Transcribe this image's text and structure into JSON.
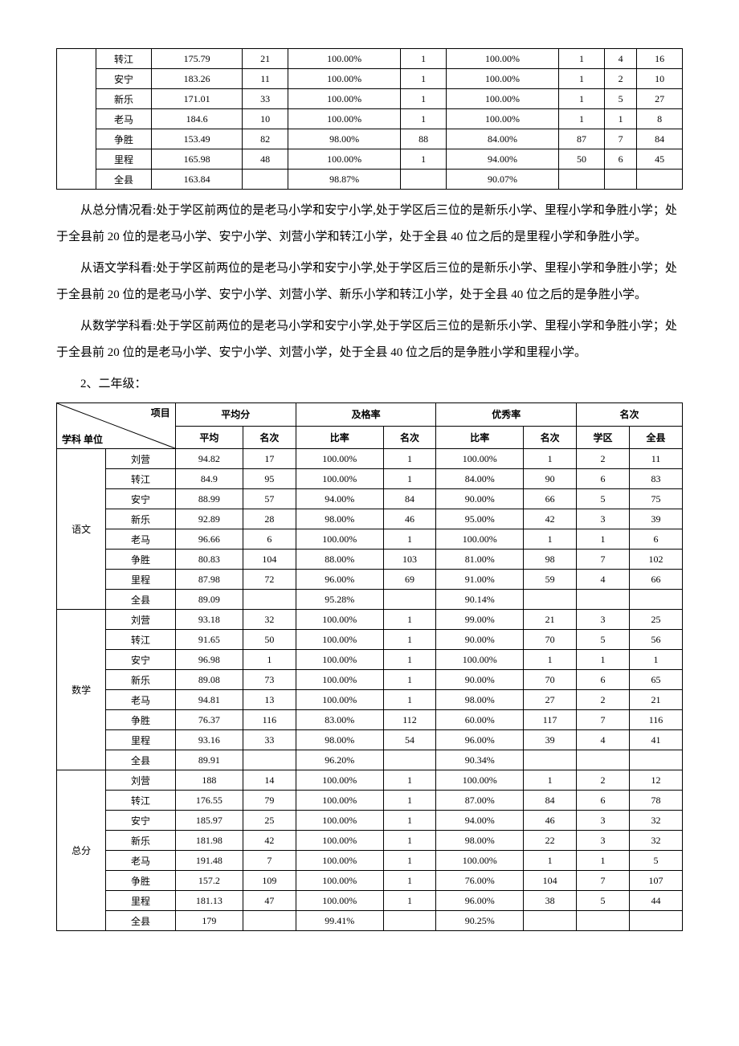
{
  "table1": {
    "rows": [
      {
        "school": "转江",
        "avg": "175.79",
        "avgRank": "21",
        "passRate": "100.00%",
        "passRank": "1",
        "excRate": "100.00%",
        "excRank": "1",
        "dist": "4",
        "county": "16"
      },
      {
        "school": "安宁",
        "avg": "183.26",
        "avgRank": "11",
        "passRate": "100.00%",
        "passRank": "1",
        "excRate": "100.00%",
        "excRank": "1",
        "dist": "2",
        "county": "10"
      },
      {
        "school": "新乐",
        "avg": "171.01",
        "avgRank": "33",
        "passRate": "100.00%",
        "passRank": "1",
        "excRate": "100.00%",
        "excRank": "1",
        "dist": "5",
        "county": "27"
      },
      {
        "school": "老马",
        "avg": "184.6",
        "avgRank": "10",
        "passRate": "100.00%",
        "passRank": "1",
        "excRate": "100.00%",
        "excRank": "1",
        "dist": "1",
        "county": "8"
      },
      {
        "school": "争胜",
        "avg": "153.49",
        "avgRank": "82",
        "passRate": "98.00%",
        "passRank": "88",
        "excRate": "84.00%",
        "excRank": "87",
        "dist": "7",
        "county": "84"
      },
      {
        "school": "里程",
        "avg": "165.98",
        "avgRank": "48",
        "passRate": "100.00%",
        "passRank": "1",
        "excRate": "94.00%",
        "excRank": "50",
        "dist": "6",
        "county": "45"
      },
      {
        "school": "全县",
        "avg": "163.84",
        "avgRank": "",
        "passRate": "98.87%",
        "passRank": "",
        "excRate": "90.07%",
        "excRank": "",
        "dist": "",
        "county": ""
      }
    ]
  },
  "paragraphs": {
    "p1": "从总分情况看:处于学区前两位的是老马小学和安宁小学,处于学区后三位的是新乐小学、里程小学和争胜小学；处于全县前 20 位的是老马小学、安宁小学、刘营小学和转江小学，处于全县 40 位之后的是里程小学和争胜小学。",
    "p2": "从语文学科看:处于学区前两位的是老马小学和安宁小学,处于学区后三位的是新乐小学、里程小学和争胜小学；处于全县前 20 位的是老马小学、安宁小学、刘营小学、新乐小学和转江小学，处于全县 40 位之后的是争胜小学。",
    "p3": "从数学学科看:处于学区前两位的是老马小学和安宁小学,处于学区后三位的是新乐小学、里程小学和争胜小学；处于全县前 20 位的是老马小学、安宁小学、刘营小学，处于全县 40 位之后的是争胜小学和里程小学。",
    "heading": "2、二年级："
  },
  "t2header": {
    "diagTop": "项目",
    "diagBottom": "学科 单位",
    "avg": "平均分",
    "pass": "及格率",
    "exc": "优秀率",
    "rank": "名次",
    "subAvg": "平均",
    "subRank": "名次",
    "subRate": "比率",
    "subRank2": "名次",
    "subRate2": "比率",
    "subRank3": "名次",
    "subDist": "学区",
    "subCounty": "全县"
  },
  "table2": {
    "groups": [
      {
        "subject": "语文",
        "rows": [
          {
            "school": "刘营",
            "avg": "94.82",
            "avgRank": "17",
            "passRate": "100.00%",
            "passRank": "1",
            "excRate": "100.00%",
            "excRank": "1",
            "dist": "2",
            "county": "11"
          },
          {
            "school": "转江",
            "avg": "84.9",
            "avgRank": "95",
            "passRate": "100.00%",
            "passRank": "1",
            "excRate": "84.00%",
            "excRank": "90",
            "dist": "6",
            "county": "83"
          },
          {
            "school": "安宁",
            "avg": "88.99",
            "avgRank": "57",
            "passRate": "94.00%",
            "passRank": "84",
            "excRate": "90.00%",
            "excRank": "66",
            "dist": "5",
            "county": "75"
          },
          {
            "school": "新乐",
            "avg": "92.89",
            "avgRank": "28",
            "passRate": "98.00%",
            "passRank": "46",
            "excRate": "95.00%",
            "excRank": "42",
            "dist": "3",
            "county": "39"
          },
          {
            "school": "老马",
            "avg": "96.66",
            "avgRank": "6",
            "passRate": "100.00%",
            "passRank": "1",
            "excRate": "100.00%",
            "excRank": "1",
            "dist": "1",
            "county": "6"
          },
          {
            "school": "争胜",
            "avg": "80.83",
            "avgRank": "104",
            "passRate": "88.00%",
            "passRank": "103",
            "excRate": "81.00%",
            "excRank": "98",
            "dist": "7",
            "county": "102"
          },
          {
            "school": "里程",
            "avg": "87.98",
            "avgRank": "72",
            "passRate": "96.00%",
            "passRank": "69",
            "excRate": "91.00%",
            "excRank": "59",
            "dist": "4",
            "county": "66"
          },
          {
            "school": "全县",
            "avg": "89.09",
            "avgRank": "",
            "passRate": "95.28%",
            "passRank": "",
            "excRate": "90.14%",
            "excRank": "",
            "dist": "",
            "county": ""
          }
        ]
      },
      {
        "subject": "数学",
        "rows": [
          {
            "school": "刘营",
            "avg": "93.18",
            "avgRank": "32",
            "passRate": "100.00%",
            "passRank": "1",
            "excRate": "99.00%",
            "excRank": "21",
            "dist": "3",
            "county": "25"
          },
          {
            "school": "转江",
            "avg": "91.65",
            "avgRank": "50",
            "passRate": "100.00%",
            "passRank": "1",
            "excRate": "90.00%",
            "excRank": "70",
            "dist": "5",
            "county": "56"
          },
          {
            "school": "安宁",
            "avg": "96.98",
            "avgRank": "1",
            "passRate": "100.00%",
            "passRank": "1",
            "excRate": "100.00%",
            "excRank": "1",
            "dist": "1",
            "county": "1"
          },
          {
            "school": "新乐",
            "avg": "89.08",
            "avgRank": "73",
            "passRate": "100.00%",
            "passRank": "1",
            "excRate": "90.00%",
            "excRank": "70",
            "dist": "6",
            "county": "65"
          },
          {
            "school": "老马",
            "avg": "94.81",
            "avgRank": "13",
            "passRate": "100.00%",
            "passRank": "1",
            "excRate": "98.00%",
            "excRank": "27",
            "dist": "2",
            "county": "21"
          },
          {
            "school": "争胜",
            "avg": "76.37",
            "avgRank": "116",
            "passRate": "83.00%",
            "passRank": "112",
            "excRate": "60.00%",
            "excRank": "117",
            "dist": "7",
            "county": "116"
          },
          {
            "school": "里程",
            "avg": "93.16",
            "avgRank": "33",
            "passRate": "98.00%",
            "passRank": "54",
            "excRate": "96.00%",
            "excRank": "39",
            "dist": "4",
            "county": "41"
          },
          {
            "school": "全县",
            "avg": "89.91",
            "avgRank": "",
            "passRate": "96.20%",
            "passRank": "",
            "excRate": "90.34%",
            "excRank": "",
            "dist": "",
            "county": ""
          }
        ]
      },
      {
        "subject": "总分",
        "rows": [
          {
            "school": "刘营",
            "avg": "188",
            "avgRank": "14",
            "passRate": "100.00%",
            "passRank": "1",
            "excRate": "100.00%",
            "excRank": "1",
            "dist": "2",
            "county": "12"
          },
          {
            "school": "转江",
            "avg": "176.55",
            "avgRank": "79",
            "passRate": "100.00%",
            "passRank": "1",
            "excRate": "87.00%",
            "excRank": "84",
            "dist": "6",
            "county": "78"
          },
          {
            "school": "安宁",
            "avg": "185.97",
            "avgRank": "25",
            "passRate": "100.00%",
            "passRank": "1",
            "excRate": "94.00%",
            "excRank": "46",
            "dist": "3",
            "county": "32"
          },
          {
            "school": "新乐",
            "avg": "181.98",
            "avgRank": "42",
            "passRate": "100.00%",
            "passRank": "1",
            "excRate": "98.00%",
            "excRank": "22",
            "dist": "3",
            "county": "32"
          },
          {
            "school": "老马",
            "avg": "191.48",
            "avgRank": "7",
            "passRate": "100.00%",
            "passRank": "1",
            "excRate": "100.00%",
            "excRank": "1",
            "dist": "1",
            "county": "5"
          },
          {
            "school": "争胜",
            "avg": "157.2",
            "avgRank": "109",
            "passRate": "100.00%",
            "passRank": "1",
            "excRate": "76.00%",
            "excRank": "104",
            "dist": "7",
            "county": "107"
          },
          {
            "school": "里程",
            "avg": "181.13",
            "avgRank": "47",
            "passRate": "100.00%",
            "passRank": "1",
            "excRate": "96.00%",
            "excRank": "38",
            "dist": "5",
            "county": "44"
          },
          {
            "school": "全县",
            "avg": "179",
            "avgRank": "",
            "passRate": "99.41%",
            "passRank": "",
            "excRate": "90.25%",
            "excRank": "",
            "dist": "",
            "county": ""
          }
        ]
      }
    ]
  }
}
